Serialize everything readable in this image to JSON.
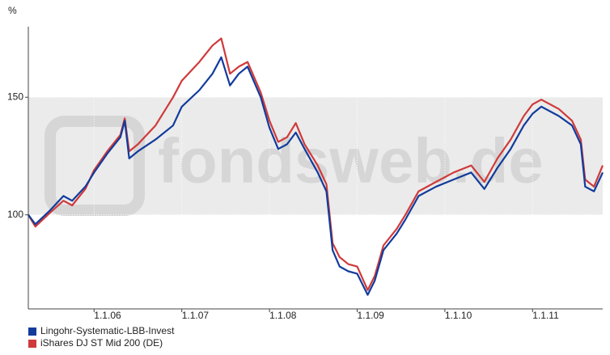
{
  "chart_data": {
    "type": "line",
    "y_label": "%",
    "watermark": "fondsweb.de",
    "x": [
      2005.25,
      2005.33,
      2005.5,
      2005.65,
      2005.75,
      2005.9,
      2006.0,
      2006.15,
      2006.3,
      2006.35,
      2006.4,
      2006.5,
      2006.7,
      2006.9,
      2007.0,
      2007.2,
      2007.35,
      2007.45,
      2007.55,
      2007.65,
      2007.75,
      2007.9,
      2008.0,
      2008.1,
      2008.2,
      2008.3,
      2008.4,
      2008.55,
      2008.65,
      2008.72,
      2008.8,
      2008.9,
      2009.0,
      2009.12,
      2009.2,
      2009.3,
      2009.45,
      2009.55,
      2009.7,
      2009.9,
      2010.1,
      2010.3,
      2010.45,
      2010.6,
      2010.75,
      2010.9,
      2011.0,
      2011.1,
      2011.3,
      2011.45,
      2011.55,
      2011.6,
      2011.7,
      2011.8
    ],
    "series": [
      {
        "name": "Lingohr-Systematic-LBB-Invest",
        "color": "#123c9c",
        "values": [
          100,
          96,
          102,
          108,
          106,
          112,
          118,
          126,
          133,
          140,
          124,
          127,
          132,
          138,
          146,
          153,
          160,
          167,
          155,
          160,
          163,
          150,
          137,
          128,
          130,
          135,
          128,
          118,
          110,
          85,
          78,
          76,
          75,
          66,
          72,
          85,
          92,
          98,
          108,
          112,
          115,
          118,
          111,
          120,
          128,
          138,
          143,
          146,
          142,
          138,
          130,
          112,
          110,
          118
        ]
      },
      {
        "name": "iShares DJ ST Mid 200 (DE)",
        "color": "#d03a3a",
        "values": [
          100,
          95,
          101,
          106,
          104,
          111,
          119,
          127,
          134,
          141,
          127,
          130,
          138,
          150,
          157,
          165,
          172,
          175,
          160,
          163,
          165,
          152,
          140,
          131,
          133,
          139,
          130,
          121,
          113,
          88,
          82,
          79,
          78,
          68,
          74,
          87,
          94,
          100,
          110,
          114,
          118,
          121,
          114,
          124,
          132,
          142,
          147,
          149,
          145,
          140,
          132,
          115,
          112,
          121
        ]
      }
    ],
    "xlim": [
      2005.25,
      2011.8
    ],
    "xticks": [
      {
        "value": 2006,
        "label": "1.1.06"
      },
      {
        "value": 2007,
        "label": "1.1.07"
      },
      {
        "value": 2008,
        "label": "1.1.08"
      },
      {
        "value": 2009,
        "label": "1.1.09"
      },
      {
        "value": 2010,
        "label": "1.1.10"
      },
      {
        "value": 2011,
        "label": "1.1.11"
      }
    ],
    "ylim": [
      60,
      180
    ],
    "yticks": [
      100,
      150
    ],
    "shaded_range": [
      100,
      150
    ],
    "grid": true
  }
}
